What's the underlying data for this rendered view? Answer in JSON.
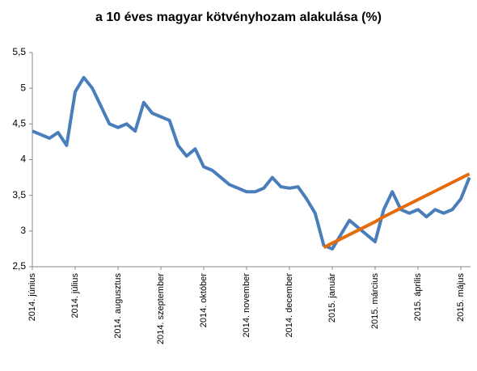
{
  "chart_data": {
    "type": "line",
    "title": "a 10 éves magyar kötvényhozam alakulása (%)",
    "categories": [
      "2014. június",
      null,
      null,
      null,
      null,
      "2014. július",
      null,
      null,
      null,
      null,
      "2014. augusztus",
      null,
      null,
      null,
      null,
      "2014. szeptember",
      null,
      null,
      null,
      null,
      "2014. október",
      null,
      null,
      null,
      null,
      "2014. november",
      null,
      null,
      null,
      null,
      "2014. december",
      null,
      null,
      null,
      null,
      "2015. január",
      null,
      null,
      null,
      null,
      "2015. március",
      null,
      null,
      null,
      null,
      "2015. április",
      null,
      null,
      null,
      null,
      "2015. május",
      null
    ],
    "series": [
      {
        "color": "#4a7ebb",
        "values": [
          4.4,
          4.35,
          4.3,
          4.38,
          4.2,
          4.95,
          5.15,
          5.0,
          4.75,
          4.5,
          4.45,
          4.5,
          4.4,
          4.8,
          4.65,
          4.6,
          4.55,
          4.2,
          4.05,
          4.15,
          3.9,
          3.85,
          3.75,
          3.65,
          3.6,
          3.55,
          3.55,
          3.6,
          3.75,
          3.62,
          3.6,
          3.62,
          3.45,
          3.25,
          2.8,
          2.75,
          2.95,
          3.15,
          3.05,
          2.95,
          2.85,
          3.3,
          3.55,
          3.3,
          3.25,
          3.3,
          3.2,
          3.3,
          3.25,
          3.3,
          3.45,
          3.75
        ]
      },
      {
        "color": "#e46c0a",
        "values": [
          null,
          null,
          null,
          null,
          null,
          null,
          null,
          null,
          null,
          null,
          null,
          null,
          null,
          null,
          null,
          null,
          null,
          null,
          null,
          null,
          null,
          null,
          null,
          null,
          null,
          null,
          null,
          null,
          null,
          null,
          null,
          null,
          null,
          null,
          2.77,
          2.83,
          2.89,
          2.95,
          3.01,
          3.07,
          3.13,
          3.2,
          3.26,
          3.32,
          3.38,
          3.44,
          3.5,
          3.56,
          3.62,
          3.68,
          3.74,
          3.8
        ]
      }
    ],
    "ylim": [
      2.5,
      5.5
    ],
    "yticks": [
      {
        "value": 2.5,
        "label": "2,5"
      },
      3,
      {
        "value": 3.5,
        "label": "3,5"
      },
      4,
      {
        "value": 4.5,
        "label": "4,5"
      },
      5,
      {
        "value": 5.5,
        "label": "5,5"
      }
    ],
    "grid": false
  }
}
